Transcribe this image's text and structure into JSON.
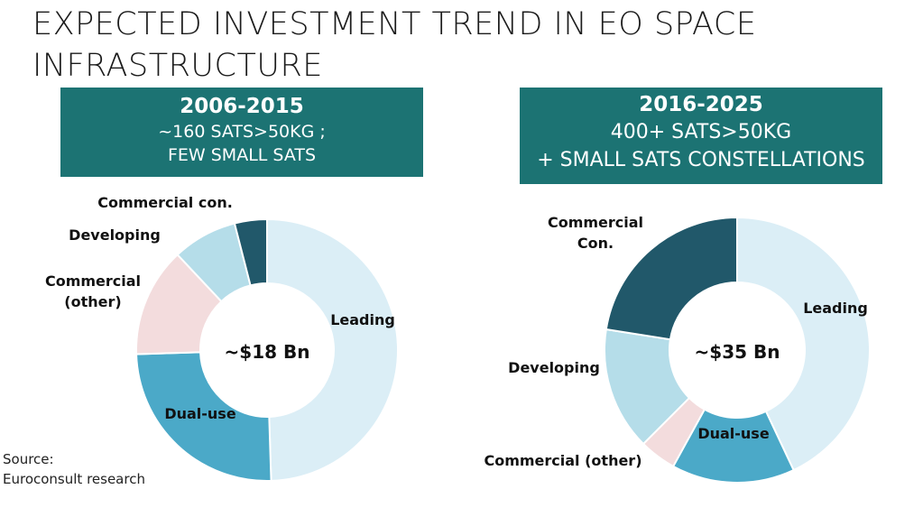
{
  "page": {
    "title_lines": [
      "EXPECTED INVESTMENT TREND IN EO SPACE",
      "INFRASTRUCTURE"
    ]
  },
  "source": {
    "label": "Source:",
    "text": "Euroconsult research"
  },
  "colors": {
    "banner": "#1c7373",
    "Leading": "#dbeef6",
    "Dual-use": "#4ba9c8",
    "Commercial (other)": "#f3dcdd",
    "Developing": "#b5dde9",
    "Commercial con.": "#21586a"
  },
  "chart_data": [
    {
      "type": "pie",
      "period": "2006-2015",
      "subtitle_lines": [
        "~160 SATS>50KG ;",
        "FEW SMALL SATS"
      ],
      "center_label": "~$18 Bn",
      "slices": [
        {
          "label": "Leading",
          "display_label": [
            "Leading"
          ],
          "value": 49.5,
          "color_key": "Leading"
        },
        {
          "label": "Dual-use",
          "display_label": [
            "Dual-use"
          ],
          "value": 25.0,
          "color_key": "Dual-use"
        },
        {
          "label": "Commercial (other)",
          "display_label": [
            "Commercial",
            "(other)"
          ],
          "value": 13.5,
          "color_key": "Commercial (other)"
        },
        {
          "label": "Developing",
          "display_label": [
            "Developing"
          ],
          "value": 8.0,
          "color_key": "Developing"
        },
        {
          "label": "Commercial con.",
          "display_label": [
            "Commercial con."
          ],
          "value": 4.0,
          "color_key": "Commercial con."
        }
      ]
    },
    {
      "type": "pie",
      "period": "2016-2025",
      "subtitle_lines": [
        "400+ SATS>50KG",
        "+ SMALL SATS CONSTELLATIONS"
      ],
      "center_label": "~$35 Bn",
      "slices": [
        {
          "label": "Leading",
          "display_label": [
            "Leading"
          ],
          "value": 43.0,
          "color_key": "Leading"
        },
        {
          "label": "Dual-use",
          "display_label": [
            "Dual-use"
          ],
          "value": 15.0,
          "color_key": "Dual-use"
        },
        {
          "label": "Commercial (other)",
          "display_label": [
            "Commercial (other)"
          ],
          "value": 4.5,
          "color_key": "Commercial (other)"
        },
        {
          "label": "Developing",
          "display_label": [
            "Developing"
          ],
          "value": 15.0,
          "color_key": "Developing"
        },
        {
          "label": "Commercial Con.",
          "display_label": [
            "Commercial",
            "Con."
          ],
          "value": 22.5,
          "color_key": "Commercial con."
        }
      ]
    }
  ]
}
